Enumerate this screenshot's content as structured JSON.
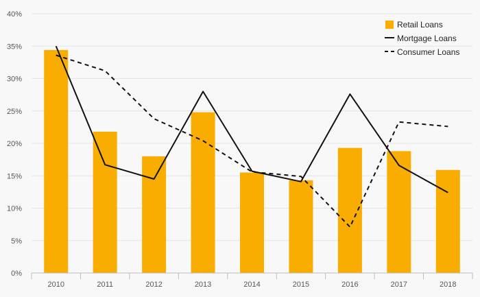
{
  "chart_data": {
    "type": "bar+line",
    "title": "",
    "xlabel": "",
    "ylabel": "",
    "ylim": [
      0,
      40
    ],
    "yticks": [
      "0%",
      "5%",
      "10%",
      "15%",
      "20%",
      "25%",
      "30%",
      "35%",
      "40%"
    ],
    "ytick_values": [
      0,
      5,
      10,
      15,
      20,
      25,
      30,
      35,
      40
    ],
    "categories": [
      "2010",
      "2011",
      "2012",
      "2013",
      "2014",
      "2015",
      "2016",
      "2017",
      "2018"
    ],
    "grid": true,
    "legend_position": "top-right",
    "series": [
      {
        "name": "Retail Loans",
        "kind": "bar",
        "color": "#f8ad00",
        "values": [
          34.4,
          21.8,
          18.0,
          24.8,
          15.5,
          14.3,
          19.3,
          18.8,
          15.9
        ]
      },
      {
        "name": "Mortgage Loans",
        "kind": "line",
        "style": "solid",
        "color": "#111111",
        "values": [
          35.0,
          16.7,
          14.5,
          28.0,
          15.7,
          14.1,
          27.6,
          16.6,
          12.4
        ]
      },
      {
        "name": "Consumer Loans",
        "kind": "line",
        "style": "dashed",
        "color": "#111111",
        "values": [
          33.6,
          31.2,
          23.8,
          20.4,
          15.6,
          14.9,
          7.1,
          23.3,
          22.6
        ]
      }
    ]
  }
}
